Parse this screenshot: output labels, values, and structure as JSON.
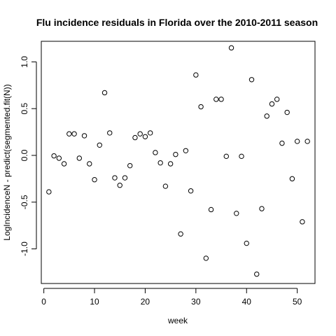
{
  "chart_data": {
    "type": "scatter",
    "title": "Flu incidence residuals in Florida over the 2010-2011 season",
    "xlabel": "week",
    "ylabel": "LogIncidenceN - predict(segmented.fit(N))",
    "xlim": [
      -0.5,
      53.5
    ],
    "ylim": [
      -1.37,
      1.22
    ],
    "xticks": [
      0,
      10,
      20,
      30,
      40,
      50
    ],
    "xtick_labels": [
      "0",
      "10",
      "20",
      "30",
      "40",
      "50"
    ],
    "yticks": [
      -1.0,
      -0.5,
      0.0,
      0.5,
      1.0
    ],
    "ytick_labels": [
      "-1.0",
      "-0.5",
      "0.0",
      "0.5",
      "1.0"
    ],
    "grid": false,
    "x": [
      1,
      2,
      3,
      4,
      5,
      6,
      7,
      8,
      9,
      10,
      11,
      12,
      13,
      14,
      15,
      16,
      17,
      18,
      19,
      20,
      21,
      22,
      23,
      24,
      25,
      26,
      27,
      28,
      29,
      30,
      31,
      32,
      33,
      34,
      35,
      36,
      37,
      38,
      39,
      40,
      41,
      42,
      43,
      44,
      45,
      46,
      47,
      48,
      49,
      50,
      51,
      52
    ],
    "y": [
      -0.39,
      -0.005,
      -0.03,
      -0.09,
      0.23,
      0.23,
      -0.03,
      0.21,
      -0.09,
      -0.26,
      0.11,
      0.67,
      0.24,
      -0.24,
      -0.32,
      -0.24,
      -0.11,
      0.19,
      0.23,
      0.2,
      0.24,
      0.03,
      -0.08,
      -0.33,
      -0.09,
      0.01,
      -0.84,
      0.05,
      -0.38,
      0.86,
      0.52,
      -1.1,
      -0.58,
      0.6,
      0.6,
      -0.01,
      1.15,
      -0.62,
      -0.01,
      -0.94,
      0.81,
      -1.27,
      -0.57,
      0.42,
      0.55,
      0.6,
      0.13,
      0.46,
      -0.25,
      0.15,
      -0.71,
      0.15
    ]
  }
}
